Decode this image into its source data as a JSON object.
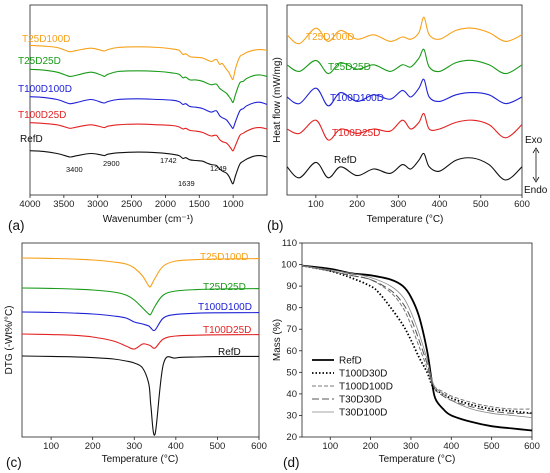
{
  "figure": {
    "colors": {
      "T25D100D": "#f7a11a",
      "T25D25D": "#1a9b1a",
      "T100D100D": "#1f22d6",
      "T100D25D": "#e32222",
      "RefD": "#111111"
    }
  },
  "chart_data": [
    {
      "panel": "(a)",
      "type": "line",
      "xlabel": "Wavenumber (cm⁻¹)",
      "ylabel": "",
      "xlim": [
        4000,
        500
      ],
      "xticks": [
        "4000",
        "3500",
        "3000",
        "2500",
        "2000",
        "1500",
        "1000"
      ],
      "annotations": [
        "3400",
        "2900",
        "1742",
        "1639",
        "1249"
      ],
      "series": [
        {
          "name": "T25D100D",
          "color": "#f7a11a",
          "x": [
            4000,
            3800,
            3600,
            3450,
            3400,
            3300,
            3100,
            2950,
            2900,
            2850,
            2700,
            2400,
            2100,
            1900,
            1800,
            1742,
            1700,
            1639,
            1550,
            1450,
            1380,
            1320,
            1249,
            1200,
            1160,
            1100,
            1060,
            1030,
            1000,
            960,
            900,
            850,
            800,
            700,
            600,
            500
          ],
          "y": [
            0.2,
            0.3,
            0.5,
            1.0,
            1.1,
            0.9,
            0.6,
            0.9,
            1.0,
            0.8,
            0.5,
            0.4,
            0.5,
            0.7,
            0.9,
            1.5,
            1.4,
            1.8,
            1.9,
            2.0,
            2.3,
            2.5,
            2.2,
            2.9,
            2.8,
            3.6,
            4.1,
            4.7,
            5.0,
            3.3,
            1.8,
            1.5,
            1.2,
            0.9,
            0.8,
            0.9
          ]
        },
        {
          "name": "T25D25D",
          "color": "#1a9b1a",
          "x": [
            4000,
            3800,
            3600,
            3450,
            3400,
            3300,
            3100,
            2950,
            2900,
            2850,
            2700,
            2400,
            2100,
            1900,
            1800,
            1742,
            1700,
            1639,
            1550,
            1450,
            1380,
            1320,
            1249,
            1200,
            1160,
            1100,
            1060,
            1030,
            1000,
            960,
            900,
            850,
            800,
            700,
            600,
            500
          ],
          "y": [
            0.2,
            0.3,
            0.6,
            1.1,
            1.2,
            1.0,
            0.6,
            1.0,
            1.2,
            0.9,
            0.5,
            0.4,
            0.5,
            0.7,
            0.9,
            1.4,
            1.3,
            1.7,
            1.7,
            1.9,
            2.2,
            2.4,
            2.3,
            2.9,
            3.2,
            3.6,
            4.1,
            4.5,
            4.9,
            3.6,
            2.1,
            1.9,
            1.5,
            1.1,
            1.0,
            1.2
          ]
        },
        {
          "name": "T100D100D",
          "color": "#1f22d6",
          "x": [
            4000,
            3800,
            3600,
            3450,
            3400,
            3300,
            3100,
            2950,
            2900,
            2850,
            2700,
            2400,
            2100,
            1900,
            1800,
            1742,
            1700,
            1639,
            1550,
            1450,
            1380,
            1320,
            1249,
            1200,
            1160,
            1100,
            1060,
            1030,
            1000,
            960,
            900,
            850,
            800,
            700,
            600,
            500
          ],
          "y": [
            0.1,
            0.2,
            0.5,
            1.0,
            1.1,
            0.9,
            0.5,
            0.9,
            1.0,
            0.8,
            0.5,
            0.4,
            0.5,
            0.6,
            0.8,
            1.2,
            1.1,
            1.5,
            1.6,
            1.8,
            2.1,
            2.3,
            2.1,
            2.8,
            3.1,
            3.4,
            3.9,
            4.3,
            4.6,
            3.5,
            2.1,
            1.8,
            1.4,
            1.0,
            0.9,
            1.2
          ]
        },
        {
          "name": "T100D25D",
          "color": "#e32222",
          "x": [
            4000,
            3800,
            3600,
            3450,
            3400,
            3300,
            3100,
            2950,
            2900,
            2850,
            2700,
            2400,
            2100,
            1900,
            1800,
            1742,
            1700,
            1639,
            1550,
            1450,
            1380,
            1320,
            1249,
            1200,
            1160,
            1100,
            1060,
            1030,
            1000,
            960,
            900,
            850,
            800,
            700,
            600,
            500
          ],
          "y": [
            0.1,
            0.2,
            0.4,
            0.8,
            0.9,
            0.7,
            0.4,
            0.7,
            0.8,
            0.6,
            0.4,
            0.3,
            0.4,
            0.5,
            0.7,
            1.0,
            0.9,
            1.2,
            1.3,
            1.5,
            1.8,
            2.0,
            1.9,
            2.5,
            2.8,
            3.0,
            3.4,
            3.8,
            4.1,
            3.2,
            1.9,
            1.6,
            1.3,
            0.9,
            0.8,
            1.0
          ]
        },
        {
          "name": "RefD",
          "color": "#111111",
          "x": [
            4000,
            3800,
            3600,
            3450,
            3400,
            3300,
            3100,
            2950,
            2900,
            2850,
            2700,
            2400,
            2100,
            1900,
            1800,
            1742,
            1700,
            1639,
            1550,
            1450,
            1380,
            1320,
            1249,
            1200,
            1160,
            1100,
            1060,
            1030,
            1000,
            960,
            900,
            850,
            800,
            700,
            600,
            500
          ],
          "y": [
            0.1,
            0.2,
            0.5,
            0.9,
            1.0,
            0.8,
            0.5,
            0.7,
            0.8,
            0.6,
            0.4,
            0.3,
            0.4,
            0.6,
            0.8,
            1.2,
            1.1,
            1.4,
            1.5,
            1.6,
            1.9,
            2.1,
            2.2,
            2.7,
            3.0,
            3.3,
            3.8,
            4.4,
            4.8,
            3.5,
            2.0,
            1.6,
            1.3,
            0.9,
            0.8,
            1.0
          ]
        }
      ]
    },
    {
      "panel": "(b)",
      "type": "line",
      "xlabel": "Temperature (°C)",
      "ylabel": "Heat flow (mW/mg)",
      "xlim": [
        30,
        600
      ],
      "xticks": [
        "100",
        "200",
        "300",
        "400",
        "500",
        "600"
      ],
      "side_labels": {
        "exo": "Exo",
        "endo": "Endo"
      },
      "series": [
        {
          "name": "T25D100D",
          "color": "#f7a11a",
          "x": [
            30,
            60,
            100,
            130,
            160,
            200,
            240,
            280,
            310,
            330,
            350,
            362,
            375,
            400,
            440,
            480,
            520,
            560,
            600
          ],
          "y": [
            0.6,
            0.2,
            0.9,
            0.3,
            0.8,
            0.4,
            0.6,
            0.3,
            0.5,
            0.4,
            0.7,
            1.4,
            0.6,
            0.4,
            0.8,
            0.9,
            0.7,
            0.3,
            0.6
          ]
        },
        {
          "name": "T25D25D",
          "color": "#1a9b1a",
          "x": [
            30,
            60,
            100,
            130,
            160,
            200,
            240,
            280,
            310,
            330,
            350,
            362,
            375,
            400,
            440,
            480,
            520,
            560,
            600
          ],
          "y": [
            0.6,
            0.3,
            0.8,
            0.2,
            0.7,
            0.4,
            0.6,
            0.3,
            0.6,
            0.5,
            0.9,
            1.3,
            0.5,
            0.3,
            0.7,
            0.8,
            0.6,
            0.2,
            0.6
          ]
        },
        {
          "name": "T100D100D",
          "color": "#1f22d6",
          "x": [
            30,
            60,
            100,
            130,
            160,
            200,
            240,
            280,
            310,
            330,
            350,
            362,
            375,
            400,
            440,
            480,
            520,
            560,
            600
          ],
          "y": [
            0.5,
            0.2,
            0.9,
            0.1,
            0.7,
            0.3,
            0.6,
            0.4,
            0.8,
            0.5,
            0.9,
            1.3,
            0.5,
            0.3,
            0.6,
            0.7,
            0.6,
            0.2,
            0.5
          ]
        },
        {
          "name": "T100D25D",
          "color": "#e32222",
          "x": [
            30,
            60,
            100,
            130,
            160,
            200,
            240,
            280,
            310,
            330,
            350,
            362,
            375,
            400,
            440,
            480,
            520,
            560,
            600
          ],
          "y": [
            0.5,
            0.3,
            0.9,
            0.0,
            0.5,
            0.3,
            0.5,
            0.4,
            0.9,
            0.5,
            0.8,
            1.2,
            0.5,
            0.5,
            0.8,
            0.9,
            0.7,
            0.1,
            0.7
          ]
        },
        {
          "name": "RefD",
          "color": "#111111",
          "x": [
            30,
            60,
            100,
            130,
            160,
            200,
            240,
            280,
            310,
            330,
            350,
            362,
            375,
            400,
            440,
            480,
            520,
            560,
            600
          ],
          "y": [
            0.6,
            0.1,
            0.8,
            0.1,
            0.6,
            0.2,
            0.5,
            0.3,
            0.7,
            0.5,
            0.9,
            1.2,
            0.6,
            0.4,
            0.9,
            1.0,
            0.7,
            0.0,
            0.6
          ]
        }
      ]
    },
    {
      "panel": "(c)",
      "type": "line",
      "xlabel": "Temperature (°C)",
      "ylabel": "DTG (-Wt%/°C)",
      "xlim": [
        30,
        600
      ],
      "xticks": [
        "100",
        "200",
        "300",
        "400",
        "500",
        "600"
      ],
      "series": [
        {
          "name": "T25D100D",
          "color": "#f7a11a",
          "x": [
            30,
            100,
            150,
            200,
            250,
            280,
            300,
            320,
            335,
            340,
            350,
            370,
            400,
            450,
            500,
            600
          ],
          "y": [
            0,
            -0.02,
            -0.05,
            -0.1,
            -0.2,
            -0.3,
            -0.5,
            -0.9,
            -1.4,
            -1.4,
            -1.0,
            -0.4,
            -0.15,
            -0.08,
            -0.05,
            -0.03
          ]
        },
        {
          "name": "T25D25D",
          "color": "#1a9b1a",
          "x": [
            30,
            100,
            150,
            200,
            250,
            280,
            300,
            320,
            335,
            340,
            350,
            370,
            400,
            450,
            500,
            600
          ],
          "y": [
            0,
            -0.02,
            -0.05,
            -0.1,
            -0.2,
            -0.35,
            -0.6,
            -1.0,
            -1.3,
            -1.3,
            -0.9,
            -0.35,
            -0.15,
            -0.08,
            -0.05,
            -0.03
          ]
        },
        {
          "name": "T100D100D",
          "color": "#1f22d6",
          "x": [
            30,
            100,
            150,
            200,
            250,
            280,
            300,
            320,
            335,
            340,
            350,
            370,
            400,
            450,
            500,
            600
          ],
          "y": [
            0,
            -0.02,
            -0.05,
            -0.1,
            -0.2,
            -0.3,
            -0.5,
            -0.6,
            -0.7,
            -0.8,
            -0.9,
            -0.3,
            -0.12,
            -0.06,
            -0.04,
            -0.03
          ]
        },
        {
          "name": "T100D25D",
          "color": "#e32222",
          "x": [
            30,
            100,
            150,
            200,
            250,
            280,
            300,
            320,
            335,
            340,
            350,
            370,
            400,
            450,
            500,
            600
          ],
          "y": [
            0,
            -0.03,
            -0.06,
            -0.15,
            -0.35,
            -0.6,
            -0.75,
            -0.5,
            -0.55,
            -0.6,
            -0.7,
            -0.25,
            -0.1,
            -0.06,
            -0.04,
            -0.03
          ]
        },
        {
          "name": "RefD",
          "color": "#111111",
          "x": [
            30,
            100,
            150,
            200,
            250,
            280,
            300,
            320,
            335,
            340,
            350,
            370,
            400,
            450,
            500,
            600
          ],
          "y": [
            0,
            -0.02,
            -0.04,
            -0.08,
            -0.15,
            -0.25,
            -0.35,
            -0.6,
            -1.4,
            -2.5,
            -3.9,
            -0.4,
            -0.1,
            -0.05,
            -0.03,
            -0.02
          ]
        }
      ]
    },
    {
      "panel": "(d)",
      "type": "line",
      "xlabel": "Temperature (°C)",
      "ylabel": "Mass (%)",
      "xlim": [
        30,
        600
      ],
      "ylim": [
        20,
        110
      ],
      "xticks": [
        "100",
        "200",
        "300",
        "400",
        "500",
        "600"
      ],
      "yticks": [
        "20",
        "30",
        "40",
        "50",
        "60",
        "70",
        "80",
        "90",
        "100",
        "110"
      ],
      "legend": "bottom-left",
      "series": [
        {
          "name": "RefD",
          "style": "solid-thick",
          "x": [
            30,
            100,
            150,
            200,
            250,
            280,
            300,
            320,
            340,
            350,
            360,
            380,
            400,
            450,
            500,
            550,
            600
          ],
          "y": [
            99.5,
            98,
            96,
            95,
            93,
            90,
            85,
            76,
            60,
            48,
            38,
            33,
            30,
            27,
            25,
            24,
            23
          ]
        },
        {
          "name": "T100D30D",
          "style": "dotted",
          "x": [
            30,
            100,
            150,
            200,
            220,
            250,
            280,
            300,
            320,
            340,
            350,
            360,
            380,
            400,
            450,
            500,
            550,
            600
          ],
          "y": [
            99.5,
            97,
            94,
            90,
            87,
            80,
            72,
            65,
            57,
            50,
            45,
            42,
            40,
            38,
            35,
            33,
            32,
            31
          ]
        },
        {
          "name": "T100D100D",
          "style": "dash",
          "x": [
            30,
            100,
            150,
            200,
            250,
            280,
            300,
            320,
            340,
            350,
            360,
            380,
            400,
            450,
            500,
            550,
            600
          ],
          "y": [
            99.5,
            97,
            95,
            93,
            87,
            80,
            72,
            62,
            52,
            46,
            43,
            41,
            39,
            36,
            34,
            33,
            33
          ]
        },
        {
          "name": "T30D30D",
          "style": "longdash",
          "x": [
            30,
            100,
            150,
            200,
            250,
            280,
            300,
            320,
            340,
            350,
            360,
            380,
            400,
            450,
            500,
            550,
            600
          ],
          "y": [
            99.5,
            97,
            95,
            93,
            88,
            82,
            75,
            65,
            54,
            47,
            42,
            39,
            37,
            34,
            32,
            31,
            31
          ]
        },
        {
          "name": "T30D100D",
          "style": "thin",
          "x": [
            30,
            100,
            150,
            200,
            250,
            280,
            300,
            320,
            340,
            350,
            360,
            380,
            400,
            450,
            500,
            550,
            600
          ],
          "y": [
            99.5,
            97.5,
            96,
            94,
            90,
            85,
            78,
            68,
            56,
            48,
            43,
            40,
            37,
            33,
            31,
            30,
            29
          ]
        }
      ]
    }
  ]
}
